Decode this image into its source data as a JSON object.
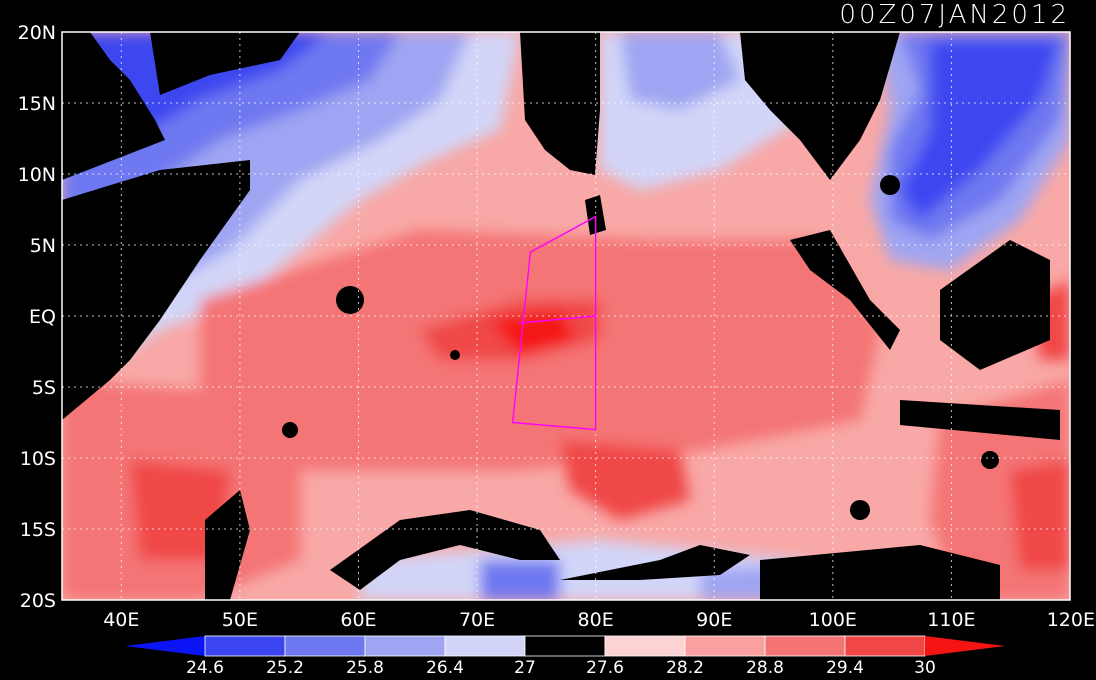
{
  "title": "00Z07JAN2012",
  "map": {
    "lon_range": [
      35,
      120
    ],
    "lat_range": [
      -20,
      20
    ],
    "lon_ticks": [
      {
        "value": 40,
        "label": "40E"
      },
      {
        "value": 50,
        "label": "50E"
      },
      {
        "value": 60,
        "label": "60E"
      },
      {
        "value": 70,
        "label": "70E"
      },
      {
        "value": 80,
        "label": "80E"
      },
      {
        "value": 90,
        "label": "90E"
      },
      {
        "value": 100,
        "label": "100E"
      },
      {
        "value": 110,
        "label": "110E"
      },
      {
        "value": 120,
        "label": "120E"
      }
    ],
    "lat_ticks": [
      {
        "value": 20,
        "label": "20N"
      },
      {
        "value": 15,
        "label": "15N"
      },
      {
        "value": 10,
        "label": "10N"
      },
      {
        "value": 5,
        "label": "5N"
      },
      {
        "value": 0,
        "label": "EQ"
      },
      {
        "value": -5,
        "label": "5S"
      },
      {
        "value": -10,
        "label": "10S"
      },
      {
        "value": -15,
        "label": "15S"
      },
      {
        "value": -20,
        "label": "20S"
      }
    ],
    "grid": true,
    "land_color": "#000000",
    "box_color": "#ff00ff",
    "box_lonlat": [
      [
        74.5,
        4.5
      ],
      [
        80,
        7
      ],
      [
        80,
        -8
      ],
      [
        73,
        -7.5
      ]
    ],
    "box_line_lonlat": [
      [
        73.5,
        -0.5
      ],
      [
        80,
        0
      ]
    ]
  },
  "colorbar": {
    "levels": [
      "24.6",
      "25.2",
      "25.8",
      "26.4",
      "27",
      "27.6",
      "28.2",
      "28.8",
      "29.4",
      "30"
    ],
    "colors": [
      "#0a14f5",
      "#3c46f0",
      "#6e78f0",
      "#9fa5f2",
      "#d2d5f8",
      "#000000",
      "#fcd2d2",
      "#faa0a0",
      "#f47474",
      "#f04646",
      "#f51414"
    ]
  }
}
